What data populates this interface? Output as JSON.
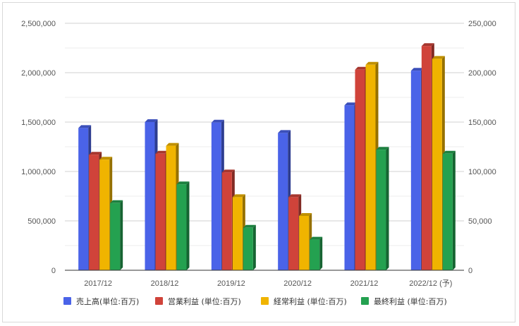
{
  "chart_data": {
    "type": "bar",
    "categories": [
      "2017/12",
      "2018/12",
      "2019/12",
      "2020/12",
      "2021/12",
      "2022/12 (予)"
    ],
    "series": [
      {
        "name": "売上高(単位:百万)",
        "axis": "left",
        "color": "#4a63e8",
        "values": [
          1440000,
          1500000,
          1495000,
          1390000,
          1670000,
          2020000
        ]
      },
      {
        "name": "営業利益 (単位:百万)",
        "axis": "right",
        "color": "#d0433a",
        "values": [
          117000,
          118000,
          99000,
          74000,
          203000,
          227000
        ]
      },
      {
        "name": "経常利益 (単位:百万)",
        "axis": "right",
        "color": "#f0b400",
        "values": [
          112000,
          126000,
          74000,
          55000,
          208000,
          214000
        ]
      },
      {
        "name": "最終利益 (単位:百万)",
        "axis": "right",
        "color": "#24a150",
        "values": [
          68000,
          87000,
          43000,
          31000,
          122000,
          118000
        ]
      }
    ],
    "left_axis": {
      "ylim": [
        0,
        2500000
      ],
      "ticks": [
        "0",
        "500,000",
        "1,000,000",
        "1,500,000",
        "2,000,000",
        "2,500,000"
      ]
    },
    "right_axis": {
      "ylim": [
        0,
        250000
      ],
      "ticks": [
        "0",
        "50,000",
        "100,000",
        "150,000",
        "200,000",
        "250,000"
      ]
    },
    "grid": true,
    "legend_position": "bottom",
    "title": "",
    "xlabel": "",
    "ylabel": ""
  }
}
